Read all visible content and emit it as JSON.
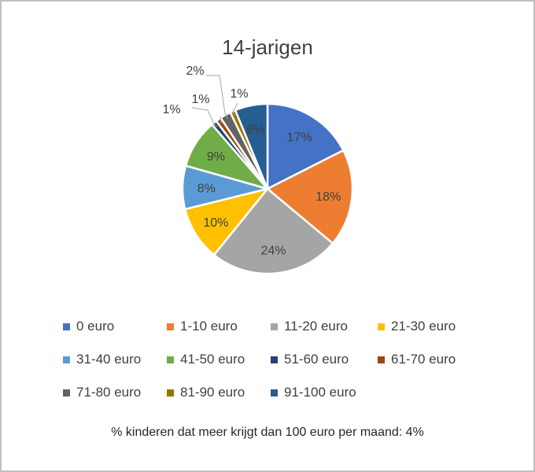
{
  "chart_data": {
    "type": "pie",
    "title": "14-jarigen",
    "categories": [
      "0 euro",
      "1-10 euro",
      "11-20 euro",
      "21-30 euro",
      "31-40 euro",
      "41-50 euro",
      "51-60 euro",
      "61-70 euro",
      "71-80 euro",
      "81-90 euro",
      "91-100 euro"
    ],
    "values": [
      17,
      18,
      24,
      10,
      8,
      9,
      1,
      1,
      2,
      1,
      6
    ],
    "labels": [
      "17%",
      "18%",
      "24%",
      "10%",
      "8%",
      "9%",
      "1%",
      "1%",
      "2%",
      "1%",
      "6%"
    ],
    "colors": [
      "#4472c4",
      "#ed7d31",
      "#a5a5a5",
      "#ffc000",
      "#5b9bd5",
      "#70ad47",
      "#264478",
      "#9e480e",
      "#636363",
      "#997300",
      "#255e91"
    ],
    "legend_position": "bottom",
    "footnote": "% kinderen dat meer krijgt dan 100 euro per maand: 4%"
  }
}
